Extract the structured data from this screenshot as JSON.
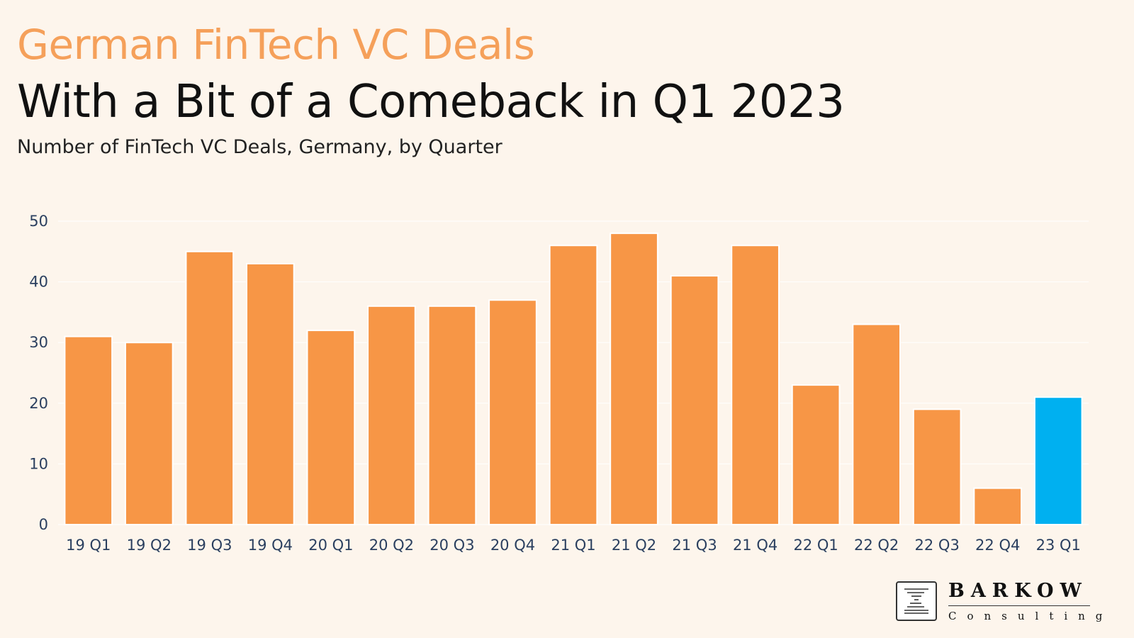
{
  "header": {
    "kicker": "German FinTech VC Deals",
    "title": "With a Bit of a Comeback in Q1 2023",
    "subtitle": "Number of FinTech VC Deals, Germany, by Quarter"
  },
  "logo": {
    "name": "BARKOW",
    "sub": "Consulting"
  },
  "colors": {
    "bar": "#f79646",
    "highlight": "#00b0f0",
    "grid": "#ffffff",
    "tick": "#2a3f5f",
    "background": "#fdf5ec"
  },
  "chart_data": {
    "type": "bar",
    "categories": [
      "19 Q1",
      "19 Q2",
      "19 Q3",
      "19 Q4",
      "20 Q1",
      "20 Q2",
      "20 Q3",
      "20 Q4",
      "21 Q1",
      "21 Q2",
      "21 Q3",
      "21 Q4",
      "22 Q1",
      "22 Q2",
      "22 Q3",
      "22 Q4",
      "23 Q1"
    ],
    "values": [
      31,
      30,
      45,
      43,
      32,
      36,
      36,
      37,
      46,
      48,
      41,
      46,
      23,
      33,
      19,
      6,
      21
    ],
    "highlight_category": "23 Q1",
    "title": "",
    "xlabel": "",
    "ylabel": "",
    "ylim": [
      0,
      50
    ],
    "yticks": [
      0,
      10,
      20,
      30,
      40,
      50
    ],
    "grid": true
  }
}
